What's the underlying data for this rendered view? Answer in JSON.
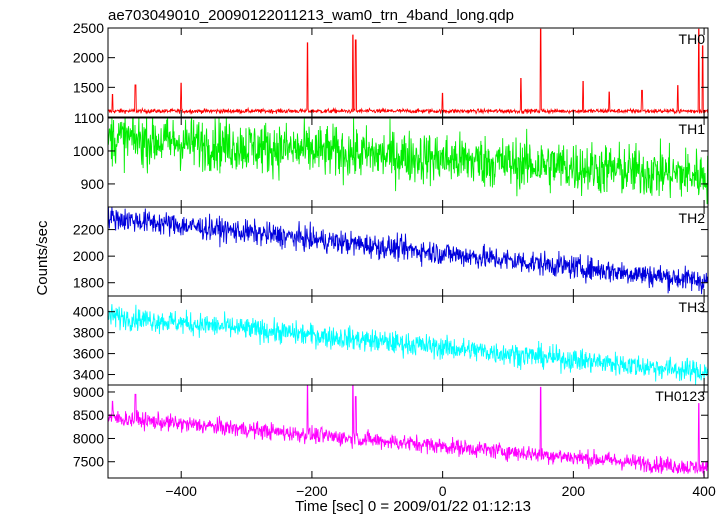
{
  "title": "ae703049010_20090122011213_wam0_trn_4band_long.qdp",
  "xlabel": "Time [sec] 0 = 2009/01/22 01:12:13",
  "ylabel": "Counts/sec",
  "chart_data": {
    "type": "line",
    "x_range": [
      -512,
      406
    ],
    "x_ticks": [
      -400,
      -200,
      0,
      200,
      400
    ],
    "x_tick_labels": [
      "−400",
      "−200",
      "0",
      "200",
      "400"
    ],
    "panels": [
      {
        "label": "TH0",
        "color": "#ff0000",
        "ylim": [
          1000,
          2500
        ],
        "ticks": [
          1500,
          2000,
          2500
        ],
        "tick_labels": [
          "1500",
          "2000",
          "2500"
        ],
        "trend": [
          [
            -512,
            1100
          ],
          [
            406,
            1100
          ]
        ],
        "noise": 18,
        "spikes": [
          [
            -505,
            1380
          ],
          [
            -470,
            1540
          ],
          [
            -400,
            1570
          ],
          [
            -207,
            2250
          ],
          [
            -137,
            2380
          ],
          [
            -133,
            2300
          ],
          [
            0,
            1400
          ],
          [
            120,
            1650
          ],
          [
            150,
            2480
          ],
          [
            215,
            1600
          ],
          [
            255,
            1420
          ],
          [
            305,
            1450
          ],
          [
            360,
            1530
          ],
          [
            392,
            2480
          ],
          [
            398,
            2200
          ]
        ]
      },
      {
        "label": "TH1",
        "color": "#00ee00",
        "ylim": [
          830,
          1100
        ],
        "ticks": [
          900,
          1000,
          1100
        ],
        "tick_labels": [
          "900",
          "1000",
          "1100"
        ],
        "trend": [
          [
            -512,
            1040
          ],
          [
            406,
            925
          ]
        ],
        "noise": 40,
        "spikes": []
      },
      {
        "label": "TH2",
        "color": "#0000dd",
        "ylim": [
          1700,
          2370
        ],
        "ticks": [
          1800,
          2000,
          2200
        ],
        "tick_labels": [
          "1800",
          "2000",
          "2200"
        ],
        "trend": [
          [
            -512,
            2290
          ],
          [
            406,
            1810
          ]
        ],
        "noise": 45,
        "spikes": []
      },
      {
        "label": "TH3",
        "color": "#00ffff",
        "ylim": [
          3300,
          4150
        ],
        "ticks": [
          3400,
          3600,
          3800,
          4000
        ],
        "tick_labels": [
          "3400",
          "3600",
          "3800",
          "4000"
        ],
        "trend": [
          [
            -512,
            3960
          ],
          [
            406,
            3420
          ]
        ],
        "noise": 55,
        "spikes": []
      },
      {
        "label": "TH0123",
        "color": "#ff00ff",
        "ylim": [
          7150,
          9150
        ],
        "ticks": [
          7500,
          8000,
          8500,
          9000
        ],
        "tick_labels": [
          "7500",
          "8000",
          "8500",
          "9000"
        ],
        "trend": [
          [
            -512,
            8450
          ],
          [
            406,
            7350
          ]
        ],
        "noise": 90,
        "spikes": [
          [
            -505,
            8800
          ],
          [
            -470,
            8950
          ],
          [
            -207,
            9150
          ],
          [
            -137,
            9150
          ],
          [
            -133,
            8900
          ],
          [
            150,
            9100
          ],
          [
            392,
            8750
          ]
        ]
      }
    ]
  }
}
